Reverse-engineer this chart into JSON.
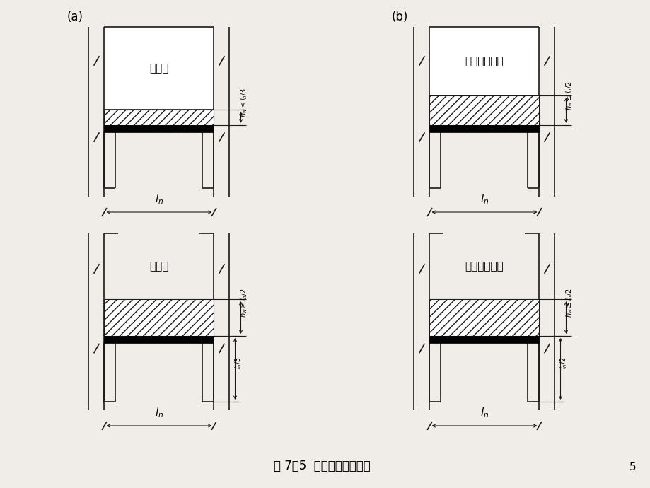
{
  "bg_color": "#f0ede8",
  "lc": "#1a1a1a",
  "caption": "图 7－5  过梁上的墙体荷载",
  "page_num": "5",
  "label_a": "(a)",
  "label_b": "(b)",
  "text_tl": "砖砌体",
  "text_tr": "小型砌块砌体",
  "text_bl": "砖砌体",
  "text_br": "小型砌块砌体",
  "dim_tl": "$h_w\\leq l_n/3$",
  "dim_tr": "$h_w\\leq l_n/2$",
  "dim_bl_outer": "$h_w\\geq l_n/2$",
  "dim_bl_inner": "$l_n/3$",
  "dim_br_outer": "$h_w\\geq l_n/2$",
  "dim_br_inner": "$l_n/2$"
}
